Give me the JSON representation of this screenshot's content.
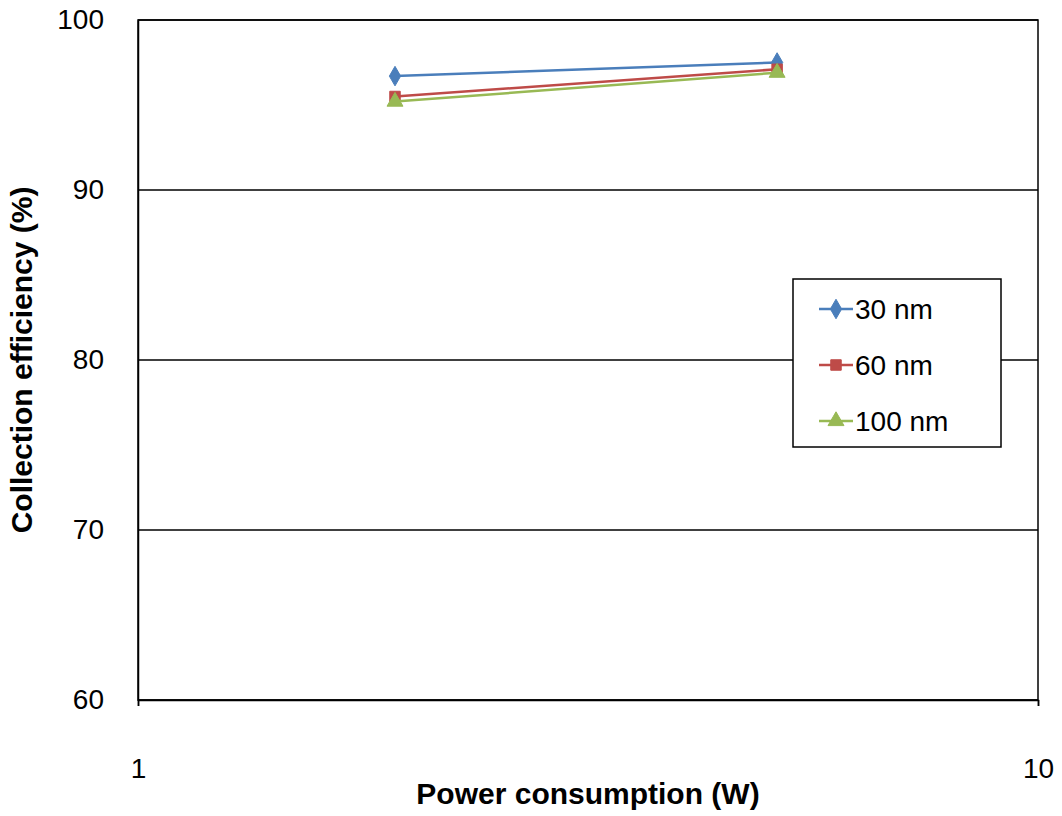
{
  "chart_data": {
    "type": "line",
    "x_label": "Power consumption (W)",
    "y_label": "Collection efficiency (%)",
    "x": [
      1.93,
      5.13
    ],
    "series": [
      {
        "name": "30 nm",
        "color": "#4a7ebb",
        "marker": "diamond",
        "line_style": "solid",
        "values": [
          96.7,
          97.5
        ]
      },
      {
        "name": "60 nm",
        "color": "#be4b48",
        "marker": "square",
        "line_style": "solid",
        "values": [
          95.5,
          97.1
        ]
      },
      {
        "name": "100 nm",
        "color": "#98b954",
        "marker": "triangle",
        "line_style": "solid",
        "values": [
          95.2,
          96.9
        ]
      }
    ],
    "xlim": [
      1,
      10
    ],
    "ylim": [
      60,
      100
    ],
    "xticks": [
      1,
      10
    ],
    "yticks": [
      60,
      70,
      80,
      90,
      100
    ],
    "log": "x",
    "grid": true,
    "legend": "right"
  }
}
